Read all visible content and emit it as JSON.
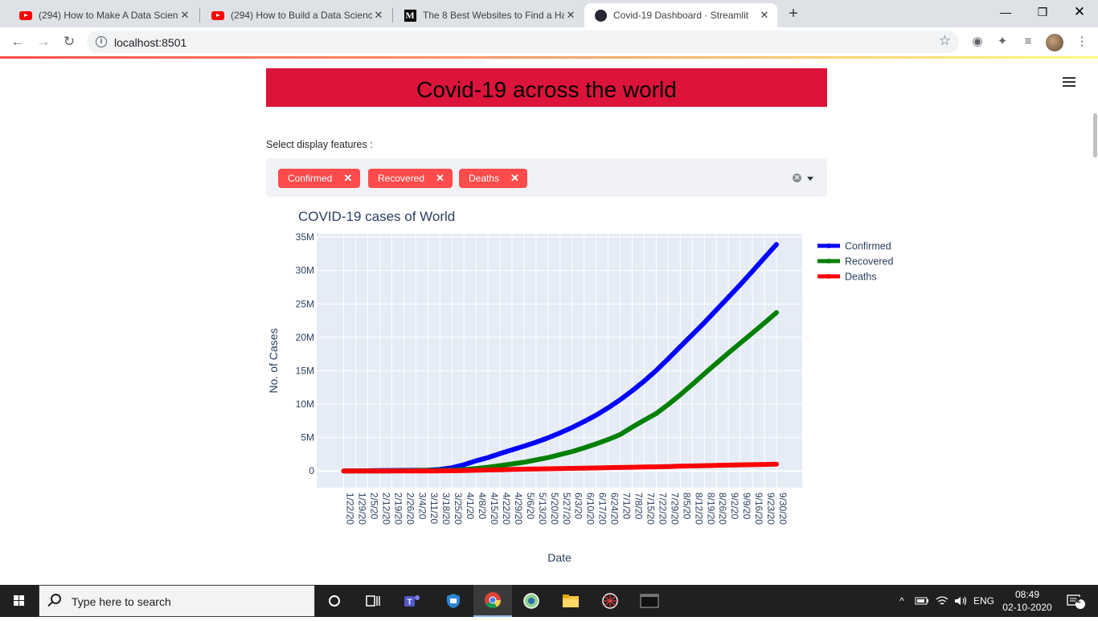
{
  "browser": {
    "tabs": [
      {
        "title": "(294) How to Make A Data Scienc",
        "icon": "youtube-icon"
      },
      {
        "title": "(294) How to Build a Data Scienc",
        "icon": "youtube-icon"
      },
      {
        "title": "The 8 Best Websites to Find a Ha",
        "icon": "medium-icon"
      },
      {
        "title": "Covid-19 Dashboard · Streamlit",
        "icon": "streamlit-icon",
        "active": true
      }
    ],
    "url": "localhost:8501"
  },
  "app": {
    "header_title": "Covid-19 across the world",
    "header_color": "#dc143c",
    "select_label": "Select display features :",
    "chips": [
      "Confirmed",
      "Recovered",
      "Deaths"
    ],
    "chip_color": "#ff4b4b"
  },
  "chart_data": {
    "type": "line",
    "title": "COVID-19 cases of World",
    "xlabel": "Date",
    "ylabel": "No. of Cases",
    "ylim": [
      -2500000,
      35500000
    ],
    "yticks": [
      0,
      5000000,
      10000000,
      15000000,
      20000000,
      25000000,
      30000000,
      35000000
    ],
    "ytick_labels": [
      "0",
      "5M",
      "10M",
      "15M",
      "20M",
      "25M",
      "30M",
      "35M"
    ],
    "x": [
      "1/22/20",
      "1/29/20",
      "2/5/20",
      "2/12/20",
      "2/19/20",
      "2/26/20",
      "3/4/20",
      "3/11/20",
      "3/18/20",
      "3/25/20",
      "4/1/20",
      "4/8/20",
      "4/15/20",
      "4/22/20",
      "4/29/20",
      "5/6/20",
      "5/13/20",
      "5/20/20",
      "5/27/20",
      "6/3/20",
      "6/10/20",
      "6/17/20",
      "6/24/20",
      "7/1/20",
      "7/8/20",
      "7/15/20",
      "7/22/20",
      "7/29/20",
      "8/5/20",
      "8/12/20",
      "8/19/20",
      "8/26/20",
      "9/2/20",
      "9/9/20",
      "9/16/20",
      "9/23/20",
      "9/30/20"
    ],
    "grid": true,
    "legend_position": "top-right",
    "series": [
      {
        "name": "Confirmed",
        "color": "#0000ff",
        "values": [
          600,
          7800,
          28000,
          45000,
          76000,
          83000,
          95000,
          126000,
          218000,
          470000,
          930000,
          1500000,
          2000000,
          2600000,
          3150000,
          3700000,
          4300000,
          4950000,
          5700000,
          6500000,
          7400000,
          8350000,
          9450000,
          10650000,
          12000000,
          13450000,
          15050000,
          16800000,
          18600000,
          20400000,
          22200000,
          24100000,
          26000000,
          27900000,
          29900000,
          31900000,
          33900000
        ]
      },
      {
        "name": "Recovered",
        "color": "#008000",
        "values": [
          30,
          130,
          1100,
          6700,
          17000,
          33000,
          53000,
          69000,
          88000,
          118000,
          200000,
          360000,
          560000,
          800000,
          1050000,
          1300000,
          1650000,
          2000000,
          2450000,
          2900000,
          3450000,
          4050000,
          4700000,
          5450000,
          6550000,
          7600000,
          8600000,
          9950000,
          11400000,
          12950000,
          14550000,
          16100000,
          17650000,
          19150000,
          20650000,
          22150000,
          23700000
        ]
      },
      {
        "name": "Deaths",
        "color": "#ff0000",
        "values": [
          17,
          170,
          560,
          1100,
          2100,
          2800,
          3300,
          4600,
          9000,
          22000,
          51000,
          95000,
          145000,
          185000,
          225000,
          265000,
          295000,
          325000,
          355000,
          385000,
          415000,
          450000,
          490000,
          520000,
          550000,
          585000,
          620000,
          660000,
          705000,
          750000,
          790000,
          830000,
          870000,
          910000,
          945000,
          980000,
          1010000
        ]
      }
    ]
  },
  "taskbar": {
    "search_placeholder": "Type here to search",
    "language": "ENG",
    "time": "08:49",
    "date": "02-10-2020",
    "notification_count": "2"
  }
}
